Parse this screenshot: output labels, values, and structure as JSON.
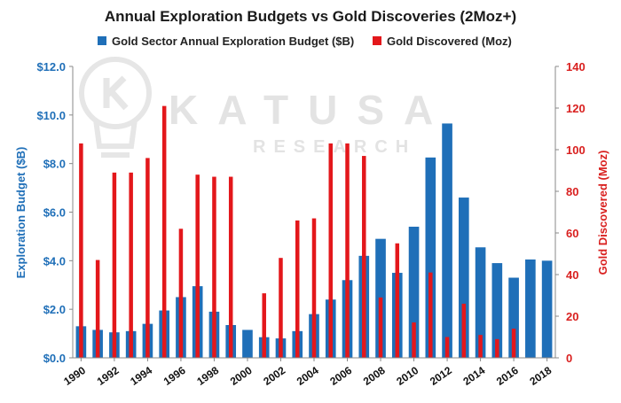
{
  "chart_data": {
    "type": "bar",
    "title": "Annual Exploration Budgets vs Gold Discoveries (2Moz+)",
    "watermark": {
      "brand": "KATUSA",
      "sub": "RESEARCH"
    },
    "x": [
      1990,
      1991,
      1992,
      1993,
      1994,
      1995,
      1996,
      1997,
      1998,
      1999,
      2000,
      2001,
      2002,
      2003,
      2004,
      2005,
      2006,
      2007,
      2008,
      2009,
      2010,
      2011,
      2012,
      2013,
      2014,
      2015,
      2016,
      2017,
      2018
    ],
    "x_tick_labels": [
      "1990",
      "1992",
      "1994",
      "1996",
      "1998",
      "2000",
      "2002",
      "2004",
      "2006",
      "2008",
      "2010",
      "2012",
      "2014",
      "2016",
      "2018"
    ],
    "series": [
      {
        "name": "Gold Sector Annual Exploration Budget ($B)",
        "axis": "left",
        "color": "#1f6fb8",
        "values": [
          1.3,
          1.15,
          1.05,
          1.1,
          1.4,
          1.95,
          2.5,
          2.95,
          1.9,
          1.35,
          1.15,
          0.85,
          0.8,
          1.1,
          1.8,
          2.4,
          3.2,
          4.2,
          4.9,
          3.5,
          5.4,
          8.25,
          9.65,
          6.6,
          4.55,
          3.9,
          3.3,
          4.05,
          4.0
        ]
      },
      {
        "name": "Gold Discovered (Moz)",
        "axis": "right",
        "color": "#e3171b",
        "values": [
          103,
          47,
          89,
          89,
          96,
          121,
          62,
          88,
          87,
          87,
          null,
          31,
          48,
          66,
          67,
          103,
          103,
          97,
          29,
          55,
          17,
          41,
          10,
          26,
          11,
          9,
          14,
          null,
          null
        ]
      }
    ],
    "y_left": {
      "label": "Exploration Budget ($B)",
      "lim": [
        0,
        12
      ],
      "ticks": [
        "$0.0",
        "$2.0",
        "$4.0",
        "$6.0",
        "$8.0",
        "$10.0",
        "$12.0"
      ]
    },
    "y_right": {
      "label": "Gold Discovered (Moz)",
      "lim": [
        0,
        140
      ],
      "ticks": [
        "0",
        "20",
        "40",
        "60",
        "80",
        "100",
        "120",
        "140"
      ]
    },
    "grid": false,
    "legend": "top"
  }
}
